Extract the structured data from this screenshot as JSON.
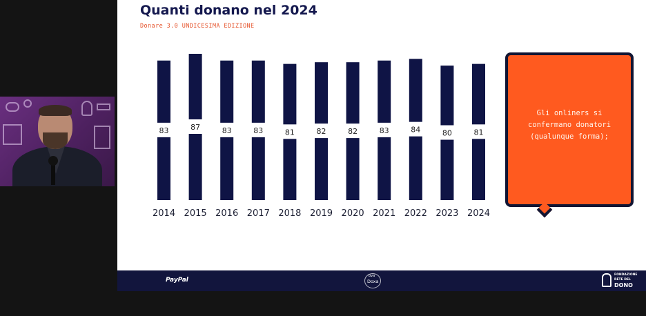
{
  "slide": {
    "title": "Quanti donano nel 2024",
    "subtitle": "Donare 3.0 UNDICESIMA EDIZIONE"
  },
  "callout": {
    "lines": [
      "Gli onliners si",
      "confermano donatori",
      "(qualunque forma);"
    ]
  },
  "footer": {
    "paypal": "PayPal",
    "bva_top": "bva",
    "bva_bottom": "Doxa",
    "rete_small1": "FONDAZIONE",
    "rete_small2": "RETE DEL",
    "rete_large": "DONO"
  },
  "colors": {
    "bar": "#0f1445",
    "accent": "#ff5a1f",
    "title": "#14184e",
    "subtitle": "#e5522a"
  },
  "webcam": {
    "subject": "presenter holding microphone"
  },
  "chart_data": {
    "type": "bar",
    "categories": [
      "2014",
      "2015",
      "2016",
      "2017",
      "2018",
      "2019",
      "2020",
      "2021",
      "2022",
      "2023",
      "2024"
    ],
    "values": [
      83,
      87,
      83,
      83,
      81,
      82,
      82,
      83,
      84,
      80,
      81
    ],
    "title": "",
    "xlabel": "",
    "ylabel": "",
    "data_labels": true,
    "grid": false,
    "legend": "none"
  }
}
